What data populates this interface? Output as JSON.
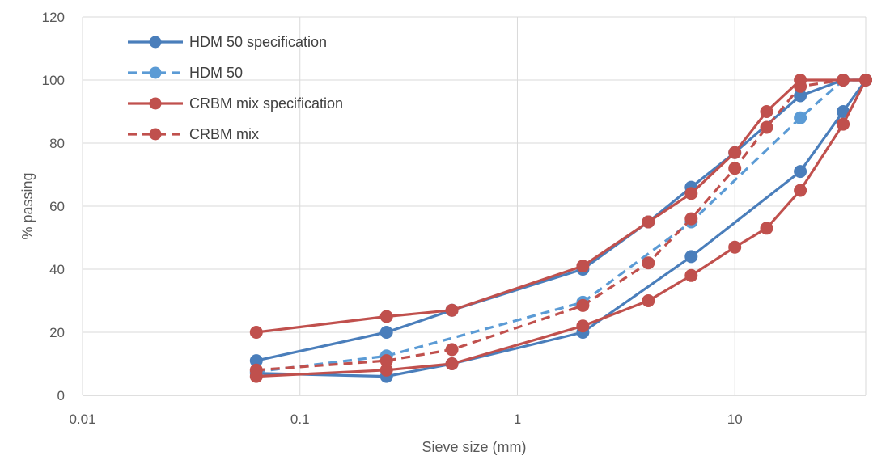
{
  "chart_data": {
    "type": "line",
    "title": "",
    "xlabel": "Sieve size (mm)",
    "ylabel": "% passing",
    "xscale": "log",
    "xlim": [
      0.01,
      40
    ],
    "ylim": [
      0,
      120
    ],
    "x_ticks": [
      0.01,
      0.1,
      1,
      10
    ],
    "x_tick_labels": [
      "0.01",
      "0.1",
      "1",
      "10"
    ],
    "y_ticks": [
      0,
      20,
      40,
      60,
      80,
      100,
      120
    ],
    "y_tick_labels": [
      "0",
      "20",
      "40",
      "60",
      "80",
      "100",
      "120"
    ],
    "grid": true,
    "legend_position": "top-left",
    "series": [
      {
        "name": "HDM 50 specification",
        "color": "#4a7ebb",
        "style": "solid",
        "envelope": true,
        "upper": {
          "x": [
            0.063,
            0.25,
            0.5,
            2,
            4,
            6.3,
            10,
            20,
            31.5,
            40
          ],
          "y": [
            11,
            20,
            27,
            40,
            55,
            66,
            77,
            95,
            100,
            100
          ]
        },
        "lower": {
          "x": [
            0.063,
            0.25,
            0.5,
            2,
            6.3,
            20,
            31.5,
            40
          ],
          "y": [
            7,
            6,
            10,
            20,
            44,
            71,
            90,
            100
          ]
        }
      },
      {
        "name": "HDM 50",
        "color": "#5b9bd5",
        "style": "dashed",
        "envelope": false,
        "x": [
          0.063,
          0.25,
          2,
          6.3,
          20,
          31.5,
          40
        ],
        "y": [
          7.5,
          12.5,
          29.5,
          55,
          88,
          100,
          100
        ]
      },
      {
        "name": "CRBM mix specification",
        "color": "#c0504d",
        "style": "solid",
        "envelope": true,
        "upper": {
          "x": [
            0.063,
            0.25,
            0.5,
            2,
            4,
            6.3,
            10,
            14,
            20,
            31.5,
            40
          ],
          "y": [
            20,
            25,
            27,
            41,
            55,
            64,
            77,
            90,
            100,
            100,
            100
          ]
        },
        "lower": {
          "x": [
            0.063,
            0.25,
            0.5,
            2,
            4,
            6.3,
            10,
            14,
            20,
            31.5,
            40
          ],
          "y": [
            6,
            8,
            10,
            22,
            30,
            38,
            47,
            53,
            65,
            86,
            100
          ]
        }
      },
      {
        "name": "CRBM mix",
        "color": "#c0504d",
        "style": "dashed",
        "envelope": false,
        "x": [
          0.063,
          0.25,
          0.5,
          2,
          4,
          6.3,
          10,
          14,
          20,
          31.5,
          40
        ],
        "y": [
          8,
          11,
          14.5,
          28.5,
          42,
          56,
          72,
          85,
          98,
          100,
          100
        ]
      }
    ]
  }
}
